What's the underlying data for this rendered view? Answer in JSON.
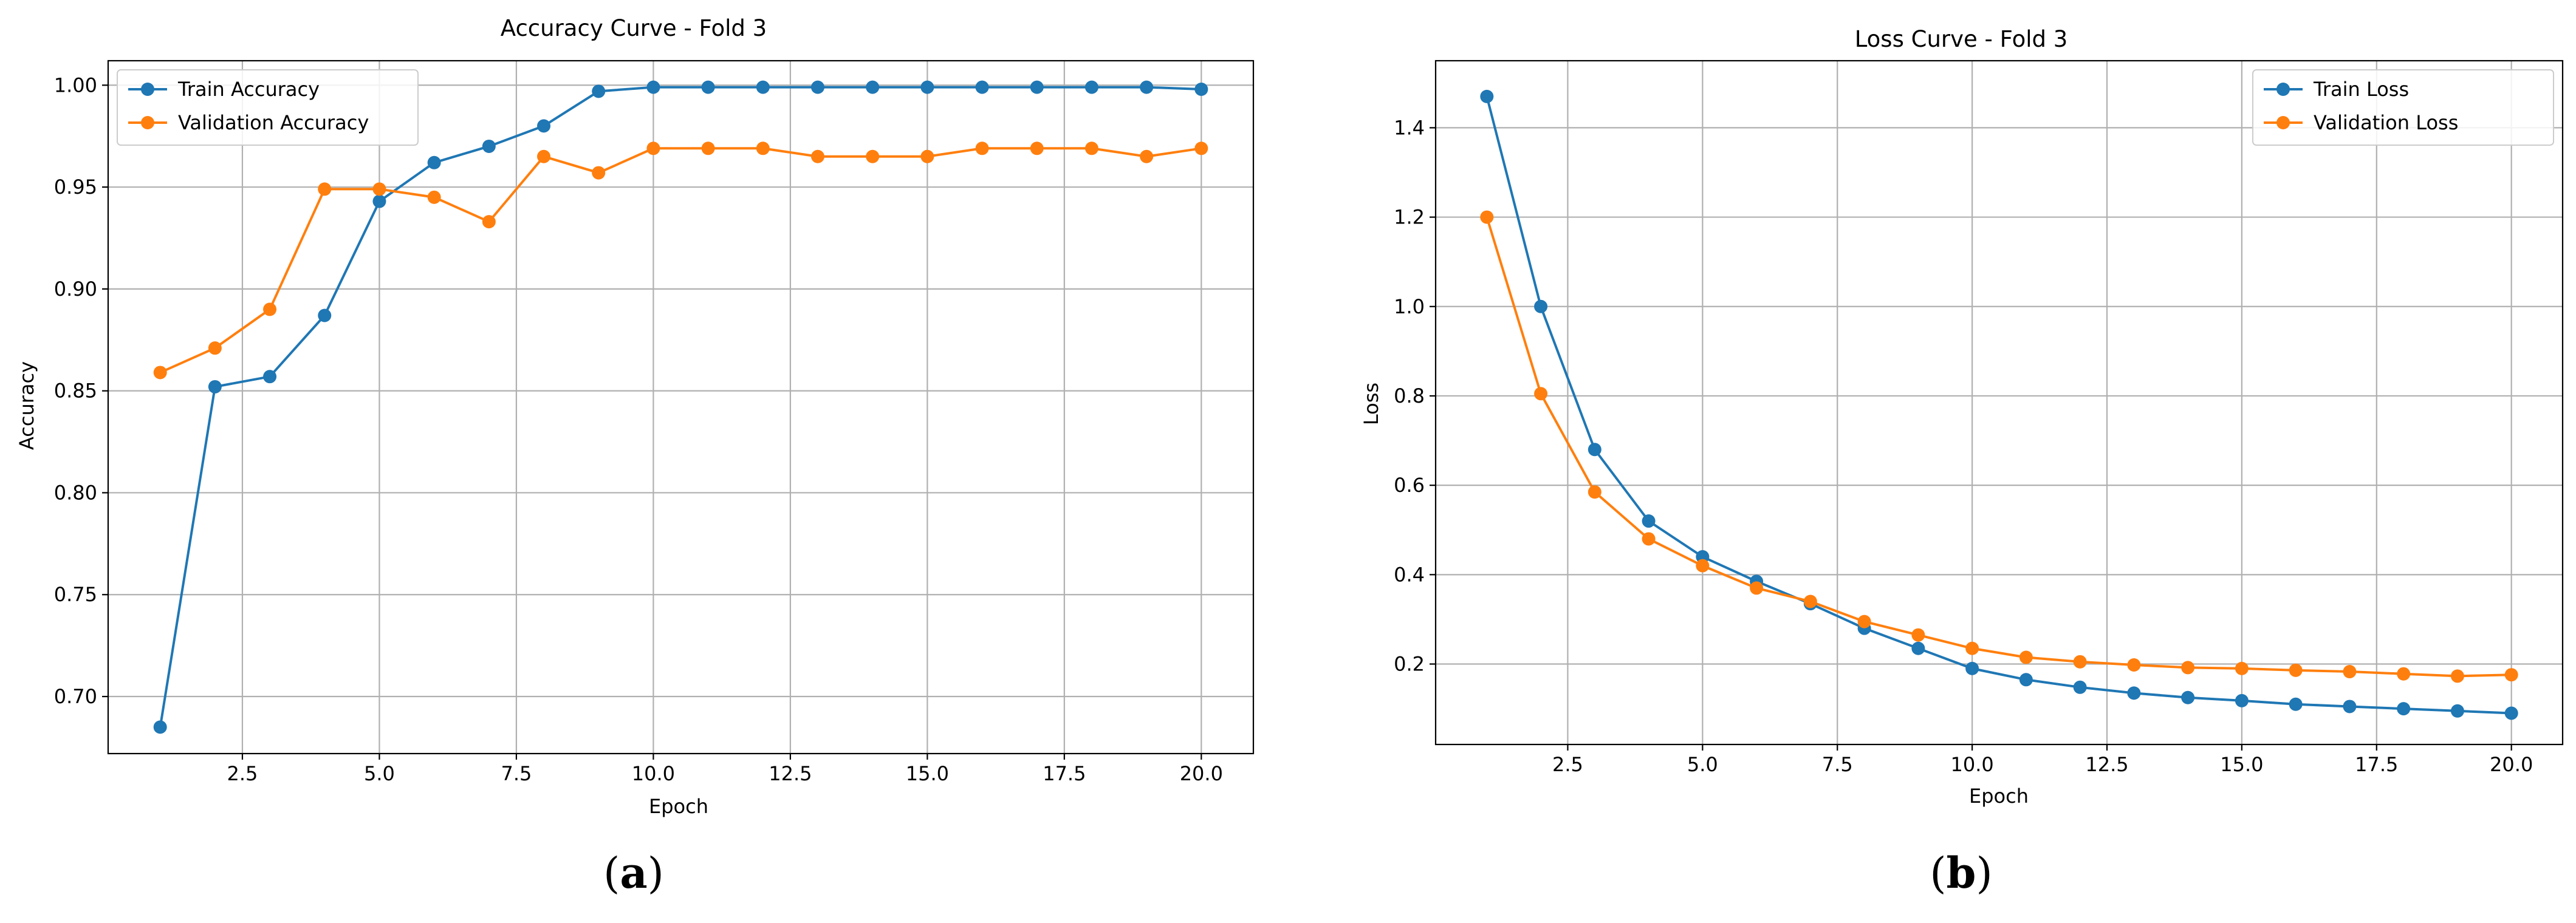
{
  "chart_data": [
    {
      "type": "line",
      "title": "Accuracy Curve - Fold 3",
      "xlabel": "Epoch",
      "ylabel": "Accuracy",
      "panel_label": "a",
      "grid": true,
      "legend_position": "top-left",
      "xlim": [
        0.05,
        20.95
      ],
      "ylim": [
        0.672,
        1.012
      ],
      "xticks": [
        2.5,
        5.0,
        7.5,
        10.0,
        12.5,
        15.0,
        17.5,
        20.0
      ],
      "xtick_labels": [
        "2.5",
        "5.0",
        "7.5",
        "10.0",
        "12.5",
        "15.0",
        "17.5",
        "20.0"
      ],
      "yticks": [
        0.7,
        0.75,
        0.8,
        0.85,
        0.9,
        0.95,
        1.0
      ],
      "ytick_labels": [
        "0.70",
        "0.75",
        "0.80",
        "0.85",
        "0.90",
        "0.95",
        "1.00"
      ],
      "x": [
        1,
        2,
        3,
        4,
        5,
        6,
        7,
        8,
        9,
        10,
        11,
        12,
        13,
        14,
        15,
        16,
        17,
        18,
        19,
        20
      ],
      "series": [
        {
          "name": "Train Accuracy",
          "color": "#1f77b4",
          "values": [
            0.685,
            0.852,
            0.857,
            0.887,
            0.943,
            0.962,
            0.97,
            0.98,
            0.997,
            0.999,
            0.999,
            0.999,
            0.999,
            0.999,
            0.999,
            0.999,
            0.999,
            0.999,
            0.999,
            0.998
          ]
        },
        {
          "name": "Validation Accuracy",
          "color": "#ff7f0e",
          "values": [
            0.859,
            0.871,
            0.89,
            0.949,
            0.949,
            0.945,
            0.933,
            0.965,
            0.957,
            0.969,
            0.969,
            0.969,
            0.965,
            0.965,
            0.965,
            0.969,
            0.969,
            0.969,
            0.965,
            0.969
          ]
        }
      ]
    },
    {
      "type": "line",
      "title": "Loss Curve - Fold 3",
      "xlabel": "Epoch",
      "ylabel": "Loss",
      "panel_label": "b",
      "grid": true,
      "legend_position": "top-right",
      "xlim": [
        0.05,
        20.95
      ],
      "ylim": [
        0.02,
        1.55
      ],
      "xticks": [
        2.5,
        5.0,
        7.5,
        10.0,
        12.5,
        15.0,
        17.5,
        20.0
      ],
      "xtick_labels": [
        "2.5",
        "5.0",
        "7.5",
        "10.0",
        "12.5",
        "15.0",
        "17.5",
        "20.0"
      ],
      "yticks": [
        0.2,
        0.4,
        0.6,
        0.8,
        1.0,
        1.2,
        1.4
      ],
      "ytick_labels": [
        "0.2",
        "0.4",
        "0.6",
        "0.8",
        "1.0",
        "1.2",
        "1.4"
      ],
      "x": [
        1,
        2,
        3,
        4,
        5,
        6,
        7,
        8,
        9,
        10,
        11,
        12,
        13,
        14,
        15,
        16,
        17,
        18,
        19,
        20
      ],
      "series": [
        {
          "name": "Train Loss",
          "color": "#1f77b4",
          "values": [
            1.47,
            1.0,
            0.68,
            0.52,
            0.44,
            0.385,
            0.335,
            0.28,
            0.235,
            0.19,
            0.165,
            0.148,
            0.135,
            0.125,
            0.118,
            0.11,
            0.105,
            0.1,
            0.095,
            0.09
          ]
        },
        {
          "name": "Validation Loss",
          "color": "#ff7f0e",
          "values": [
            1.2,
            0.805,
            0.585,
            0.48,
            0.42,
            0.37,
            0.34,
            0.295,
            0.265,
            0.235,
            0.215,
            0.205,
            0.198,
            0.192,
            0.19,
            0.186,
            0.183,
            0.178,
            0.173,
            0.176
          ]
        }
      ]
    }
  ]
}
